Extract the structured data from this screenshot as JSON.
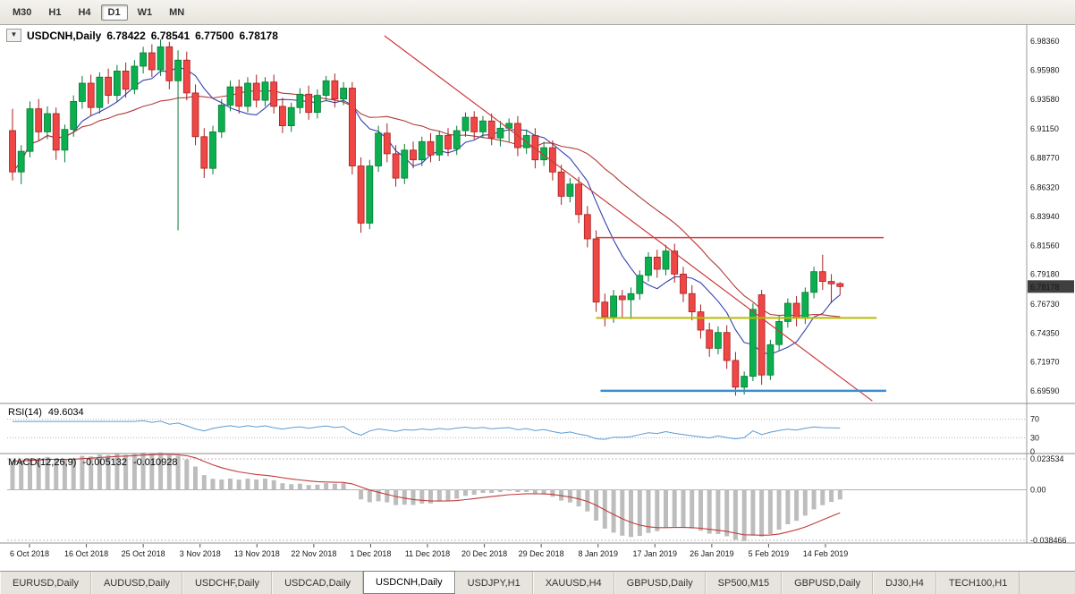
{
  "toolbar": {
    "timeframes": [
      "M30",
      "H1",
      "H4",
      "D1",
      "W1",
      "MN"
    ],
    "active": "D1"
  },
  "chart": {
    "title": {
      "dropdown_glyph": "▼",
      "symbol": "USDCNH,Daily",
      "open": "6.78422",
      "high": "6.78541",
      "low": "6.77500",
      "close": "6.78178"
    },
    "current_price": "6.78178",
    "price_axis": {
      "labels": [
        "6.98360",
        "6.95980",
        "6.93580",
        "6.91150",
        "6.88770",
        "6.86320",
        "6.83940",
        "6.81560",
        "6.79180",
        "6.76730",
        "6.74350",
        "6.71970",
        "6.69590"
      ]
    },
    "rsi": {
      "name": "RSI(14)",
      "value": "49.6034"
    },
    "rsi_axis": [
      "70",
      "30",
      "0"
    ],
    "macd": {
      "name": "MACD(12,26,9)",
      "value1": "-0.005132",
      "value2": "-0.010928"
    },
    "macd_axis": [
      "0.023534",
      "0.00",
      "-0.038466"
    ],
    "x_axis": {
      "dates": [
        "6 Oct 2018",
        "16 Oct 2018",
        "25 Oct 2018",
        "3 Nov 2018",
        "13 Nov 2018",
        "22 Nov 2018",
        "1 Dec 2018",
        "11 Dec 2018",
        "20 Dec 2018",
        "29 Dec 2018",
        "8 Jan 2019",
        "17 Jan 2019",
        "26 Jan 2019",
        "5 Feb 2019",
        "14 Feb 2019"
      ]
    }
  },
  "chart_data": {
    "type": "candlestick",
    "symbol": "USDCNH",
    "timeframe": "Daily",
    "price_range": {
      "max": 6.9939,
      "min": 6.6871
    },
    "candles": [
      [
        6.91,
        6.928,
        6.869,
        6.876
      ],
      [
        6.876,
        6.898,
        6.866,
        6.893
      ],
      [
        6.893,
        6.934,
        6.888,
        6.928
      ],
      [
        6.928,
        6.936,
        6.902,
        6.909
      ],
      [
        6.909,
        6.93,
        6.903,
        6.924
      ],
      [
        6.924,
        6.929,
        6.886,
        6.894
      ],
      [
        6.894,
        6.915,
        6.884,
        6.911
      ],
      [
        6.911,
        6.939,
        6.905,
        6.934
      ],
      [
        6.934,
        6.955,
        6.928,
        6.949
      ],
      [
        6.949,
        6.956,
        6.922,
        6.929
      ],
      [
        6.929,
        6.958,
        6.924,
        6.954
      ],
      [
        6.954,
        6.961,
        6.932,
        6.939
      ],
      [
        6.939,
        6.964,
        6.934,
        6.959
      ],
      [
        6.959,
        6.966,
        6.937,
        6.944
      ],
      [
        6.944,
        6.968,
        6.94,
        6.963
      ],
      [
        6.963,
        6.979,
        6.957,
        6.974
      ],
      [
        6.974,
        6.981,
        6.954,
        6.96
      ],
      [
        6.96,
        6.985,
        6.955,
        6.979
      ],
      [
        6.979,
        6.983,
        6.944,
        6.951
      ],
      [
        6.951,
        6.976,
        6.828,
        6.968
      ],
      [
        6.968,
        6.975,
        6.935,
        6.941
      ],
      [
        6.941,
        6.948,
        6.898,
        6.905
      ],
      [
        6.905,
        6.912,
        6.871,
        6.879
      ],
      [
        6.879,
        6.914,
        6.874,
        6.909
      ],
      [
        6.909,
        6.936,
        6.904,
        6.931
      ],
      [
        6.931,
        6.951,
        6.926,
        6.946
      ],
      [
        6.946,
        6.952,
        6.924,
        6.93
      ],
      [
        6.93,
        6.954,
        6.925,
        6.949
      ],
      [
        6.949,
        6.956,
        6.929,
        6.935
      ],
      [
        6.935,
        6.954,
        6.93,
        6.95
      ],
      [
        6.95,
        6.956,
        6.924,
        6.93
      ],
      [
        6.93,
        6.937,
        6.908,
        6.914
      ],
      [
        6.914,
        6.933,
        6.909,
        6.929
      ],
      [
        6.929,
        6.945,
        6.924,
        6.94
      ],
      [
        6.94,
        6.947,
        6.919,
        6.925
      ],
      [
        6.925,
        6.944,
        6.92,
        6.939
      ],
      [
        6.939,
        6.955,
        6.934,
        6.951
      ],
      [
        6.951,
        6.957,
        6.929,
        6.936
      ],
      [
        6.936,
        6.95,
        6.931,
        6.945
      ],
      [
        6.945,
        6.95,
        6.874,
        6.881
      ],
      [
        6.881,
        6.888,
        6.826,
        6.834
      ],
      [
        6.834,
        6.886,
        6.829,
        6.881
      ],
      [
        6.881,
        6.914,
        6.876,
        6.908
      ],
      [
        6.908,
        6.916,
        6.884,
        6.891
      ],
      [
        6.891,
        6.898,
        6.864,
        6.871
      ],
      [
        6.871,
        6.899,
        6.866,
        6.894
      ],
      [
        6.894,
        6.901,
        6.879,
        6.886
      ],
      [
        6.886,
        6.905,
        6.881,
        6.901
      ],
      [
        6.901,
        6.908,
        6.884,
        6.89
      ],
      [
        6.89,
        6.91,
        6.885,
        6.906
      ],
      [
        6.906,
        6.912,
        6.889,
        6.895
      ],
      [
        6.895,
        6.914,
        6.89,
        6.91
      ],
      [
        6.91,
        6.925,
        6.905,
        6.921
      ],
      [
        6.921,
        6.926,
        6.903,
        6.909
      ],
      [
        6.909,
        6.922,
        6.904,
        6.918
      ],
      [
        6.918,
        6.924,
        6.898,
        6.904
      ],
      [
        6.904,
        6.918,
        6.897,
        6.912
      ],
      [
        6.912,
        6.92,
        6.901,
        6.916
      ],
      [
        6.916,
        6.922,
        6.889,
        6.896
      ],
      [
        6.896,
        6.911,
        6.891,
        6.906
      ],
      [
        6.906,
        6.912,
        6.879,
        6.886
      ],
      [
        6.886,
        6.901,
        6.881,
        6.896
      ],
      [
        6.896,
        6.902,
        6.869,
        6.876
      ],
      [
        6.876,
        6.882,
        6.849,
        6.856
      ],
      [
        6.856,
        6.871,
        6.851,
        6.866
      ],
      [
        6.866,
        6.872,
        6.834,
        6.841
      ],
      [
        6.841,
        6.848,
        6.814,
        6.821
      ],
      [
        6.821,
        6.828,
        6.761,
        6.769
      ],
      [
        6.769,
        6.776,
        6.749,
        6.757
      ],
      [
        6.757,
        6.779,
        6.752,
        6.774
      ],
      [
        6.774,
        6.779,
        6.756,
        6.771
      ],
      [
        6.771,
        6.781,
        6.755,
        6.776
      ],
      [
        6.776,
        6.795,
        6.771,
        6.791
      ],
      [
        6.791,
        6.81,
        6.786,
        6.806
      ],
      [
        6.806,
        6.812,
        6.789,
        6.796
      ],
      [
        6.796,
        6.816,
        6.791,
        6.811
      ],
      [
        6.811,
        6.817,
        6.785,
        6.792
      ],
      [
        6.792,
        6.798,
        6.769,
        6.776
      ],
      [
        6.776,
        6.783,
        6.754,
        6.761
      ],
      [
        6.761,
        6.767,
        6.739,
        6.746
      ],
      [
        6.746,
        6.752,
        6.724,
        6.731
      ],
      [
        6.731,
        6.749,
        6.726,
        6.744
      ],
      [
        6.744,
        6.75,
        6.714,
        6.721
      ],
      [
        6.721,
        6.728,
        6.692,
        6.699
      ],
      [
        6.699,
        6.712,
        6.693,
        6.708
      ],
      [
        6.708,
        6.768,
        6.704,
        6.763
      ],
      [
        6.775,
        6.779,
        6.701,
        6.709
      ],
      [
        6.709,
        6.738,
        6.705,
        6.734
      ],
      [
        6.734,
        6.758,
        6.729,
        6.753
      ],
      [
        6.753,
        6.772,
        6.748,
        6.768
      ],
      [
        6.768,
        6.774,
        6.749,
        6.756
      ],
      [
        6.756,
        6.781,
        6.751,
        6.777
      ],
      [
        6.777,
        6.798,
        6.772,
        6.794
      ],
      [
        6.794,
        6.808,
        6.779,
        6.786
      ],
      [
        6.786,
        6.792,
        6.768,
        6.784
      ],
      [
        6.78422,
        6.78541,
        6.775,
        6.78178
      ]
    ],
    "overlays": {
      "trendline": {
        "i1": 42.7,
        "p1": 6.988,
        "i2": 98.7,
        "p2": 6.6877,
        "color": "#cc3a3a"
      },
      "hlines": [
        {
          "name": "resistance-line",
          "price": 6.822,
          "i1": 67,
          "i2": 100.0,
          "color": "#e23b3b",
          "width": 1.5
        },
        {
          "name": "support-line-yellow",
          "price": 6.756,
          "i1": 67,
          "i2": 99.2,
          "color": "#b8bc00",
          "width": 2
        },
        {
          "name": "support-line-blue",
          "price": 6.696,
          "i1": 67.5,
          "i2": 100.3,
          "color": "#3d8fd1",
          "width": 2.5
        }
      ],
      "ma_fast": {
        "period": 8,
        "color": "#3342b0"
      },
      "ma_slow": {
        "period": 21,
        "color": "#b03a3a"
      }
    },
    "indicators": {
      "rsi": {
        "period": 14,
        "levels": [
          70,
          30
        ],
        "color": "#5b9bd5"
      },
      "macd": {
        "fast": 12,
        "slow": 26,
        "signal": 9,
        "hist_color": "#bdbdbd",
        "signal_color": "#c23b3b",
        "axis_max": 0.023534,
        "axis_min": -0.038466
      }
    },
    "colors": {
      "up_fill": "#0caf4f",
      "up_stroke": "#067a33",
      "down_fill": "#ef4646",
      "down_stroke": "#a81f1f",
      "badge_bg": "#3f3f3f",
      "badge_text": "#ffffff"
    }
  },
  "bottom_tabs": {
    "active_index": 4,
    "items": [
      "EURUSD,Daily",
      "AUDUSD,Daily",
      "USDCHF,Daily",
      "USDCAD,Daily",
      "USDCNH,Daily",
      "USDJPY,H1",
      "XAUUSD,H4",
      "GBPUSD,Daily",
      "SP500,M15",
      "GBPUSD,Daily",
      "DJ30,H4",
      "TECH100,H1"
    ]
  }
}
